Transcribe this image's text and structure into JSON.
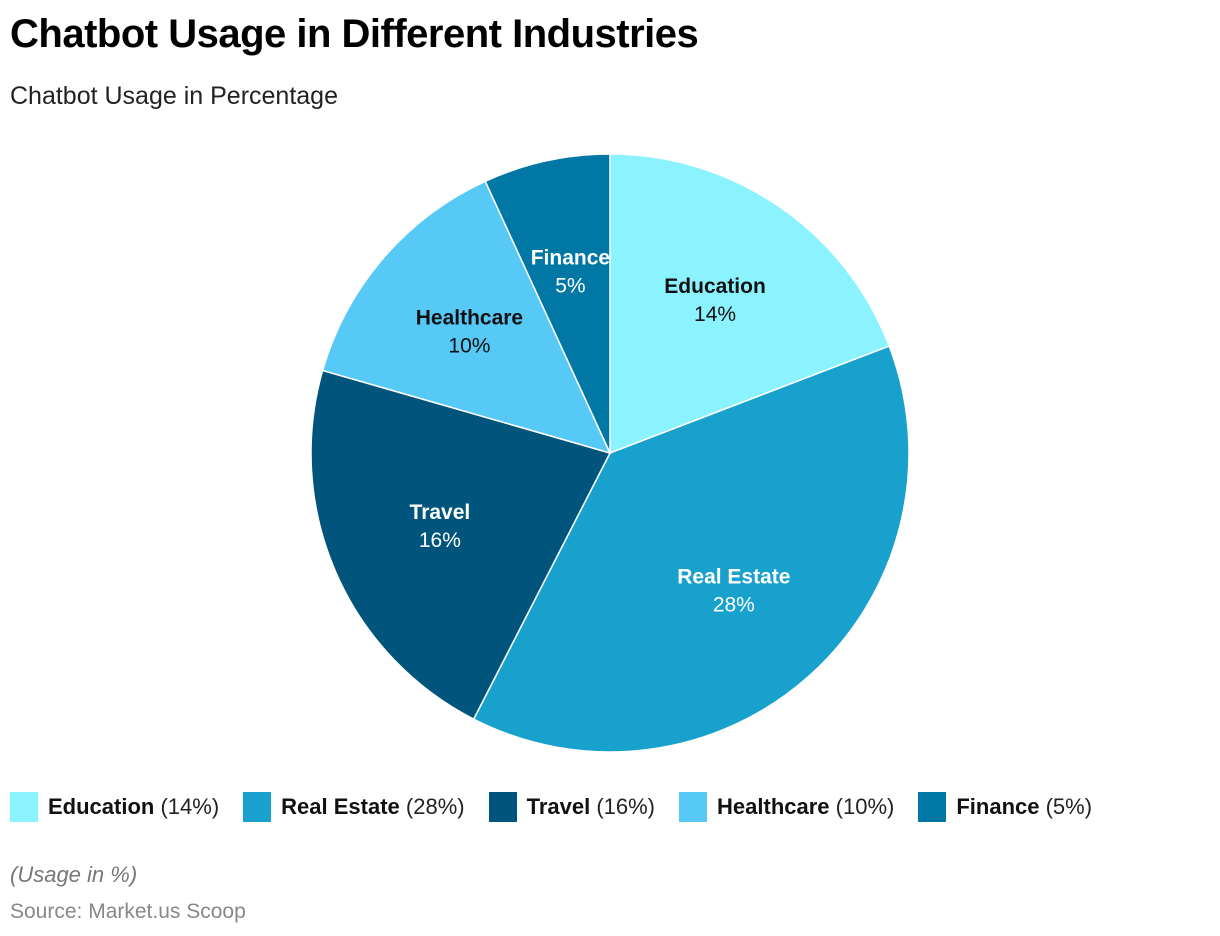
{
  "chart_data": {
    "type": "pie",
    "title": "Chatbot Usage in Different Industries",
    "subtitle": "Chatbot Usage in Percentage",
    "slices": [
      {
        "label": "Education",
        "value": 14,
        "value_label": "14%",
        "color": "#8af3ff",
        "text_color": "#111111"
      },
      {
        "label": "Real Estate",
        "value": 28,
        "value_label": "28%",
        "color": "#18a1cd",
        "text_color": "#ffffff"
      },
      {
        "label": "Travel",
        "value": 16,
        "value_label": "16%",
        "color": "#01557c",
        "text_color": "#ffffff"
      },
      {
        "label": "Healthcare",
        "value": 10,
        "value_label": "10%",
        "color": "#56c9f6",
        "text_color": "#111111"
      },
      {
        "label": "Finance",
        "value": 5,
        "value_label": "5%",
        "color": "#0077a5",
        "text_color": "#ffffff"
      }
    ],
    "legend": {
      "position": "bottom",
      "items": [
        {
          "name": "Education",
          "value": "(14%)"
        },
        {
          "name": "Real Estate",
          "value": "(28%)"
        },
        {
          "name": "Travel",
          "value": "(16%)"
        },
        {
          "name": "Healthcare",
          "value": "(10%)"
        },
        {
          "name": "Finance",
          "value": "(5%)"
        }
      ]
    },
    "note": "(Usage in %)",
    "source": "Source: Market.us Scoop"
  }
}
